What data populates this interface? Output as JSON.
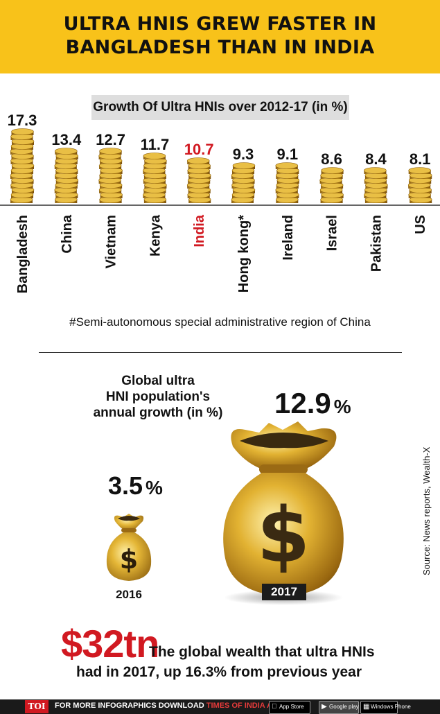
{
  "header": {
    "title_line1": "ULTRA HNIS GREW FASTER IN",
    "title_line2": "BANGLADESH THAN IN INDIA"
  },
  "chart_data": {
    "type": "bar",
    "title": "Growth Of Ultra HNIs over 2012-17 (in %)",
    "categories": [
      "Bangladesh",
      "China",
      "Vietnam",
      "Kenya",
      "India",
      "Hong kong*",
      "Ireland",
      "Israel",
      "Pakistan",
      "US"
    ],
    "values": [
      17.3,
      13.4,
      12.7,
      11.7,
      10.7,
      9.3,
      9.1,
      8.6,
      8.4,
      8.1
    ],
    "labels": [
      "17.3",
      "13.4",
      "12.7",
      "11.7",
      "10.7",
      "9.3",
      "9.1",
      "8.6",
      "8.4",
      "8.1"
    ],
    "highlight": "India",
    "colors": {
      "highlight": "#d11921",
      "text": "#111111",
      "coin": "#d9a521"
    }
  },
  "footnote": "#Semi-autonomous special administrative region of China",
  "global_growth": {
    "title_line1": "Global ultra",
    "title_line2": "HNI population's",
    "title_line3": "annual growth (in %)",
    "value_2016": "3.5",
    "value_2017": "12.9",
    "pct_sign": "%",
    "year_2016": "2016",
    "year_2017": "2017",
    "dollar": "$"
  },
  "source": "Source: News reports, Wealth-X",
  "wealth": {
    "value": "$32tn",
    "desc_line1": "The global wealth that ultra HNIs",
    "desc_line2": "had in 2017, up 16.3% from previous year"
  },
  "footer": {
    "logo": "TOI",
    "text_prefix": "FOR MORE  INFOGRAPHICS DOWNLOAD ",
    "text_highlight": "TIMES OF INDIA APP",
    "app_store": "App Store",
    "google_play": "Google play",
    "windows_phone": "Windows Phone",
    "apple_icon": "apple-icon",
    "google_icon": "play-icon",
    "windows_icon": "windows-icon"
  }
}
